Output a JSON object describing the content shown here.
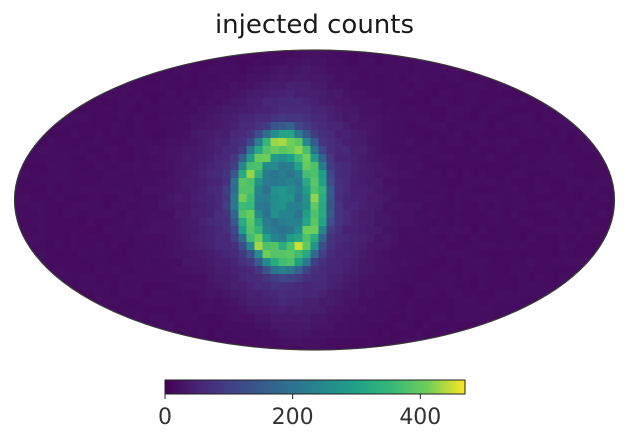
{
  "chart_data": {
    "type": "heatmap",
    "projection": "Mollweide (all-sky)",
    "title": "injected counts",
    "colormap": "viridis",
    "colorbar": {
      "orientation": "horizontal",
      "range": [
        0,
        470
      ],
      "ticks": [
        0,
        200,
        400
      ],
      "tick_labels": [
        "0",
        "200",
        "400"
      ]
    },
    "background_level": 15,
    "source": {
      "shape": "ring",
      "center_lon_deg": 20,
      "center_lat_deg": 0,
      "ring_radius_deg": 22,
      "peak_value": 460,
      "center_value": 240,
      "halo_value": 90
    }
  }
}
